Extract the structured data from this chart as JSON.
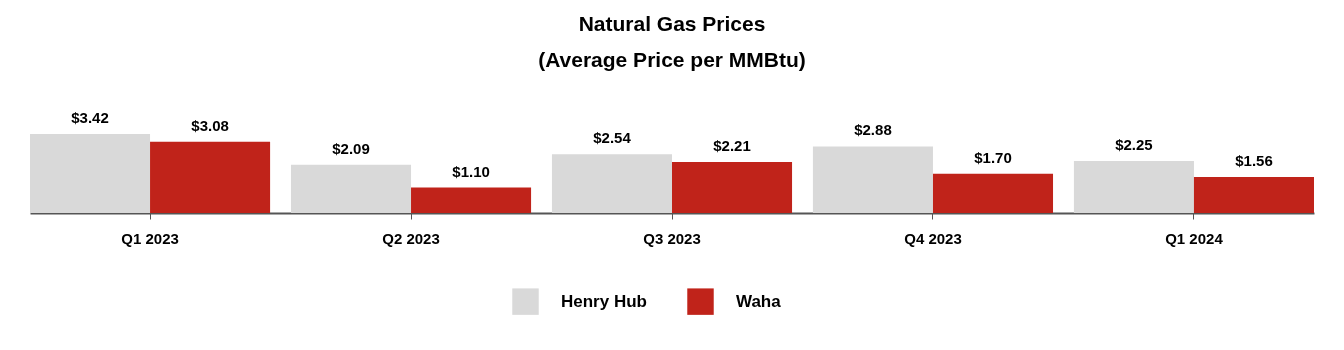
{
  "chart_data": {
    "type": "bar",
    "title": [
      "Natural Gas Prices",
      "(Average Price per MMBtu)"
    ],
    "tick_labels": "x",
    "categories": [
      "Q1 2023",
      "Q2 2023",
      "Q3 2023",
      "Q4 2023",
      "Q1 2024"
    ],
    "series": [
      {
        "name": "Henry Hub",
        "color": "#d9d9d9",
        "values": [
          3.42,
          2.09,
          2.54,
          2.88,
          2.25
        ],
        "value_labels": [
          "$3.42",
          "$2.09",
          "$2.54",
          "$2.88",
          "$2.25"
        ]
      },
      {
        "name": "Waha",
        "color": "#c0231a",
        "values": [
          3.08,
          1.1,
          2.21,
          1.7,
          1.56
        ],
        "value_labels": [
          "$3.08",
          "$1.10",
          "$2.21",
          "$1.70",
          "$1.56"
        ]
      }
    ],
    "legend": "bottom"
  }
}
